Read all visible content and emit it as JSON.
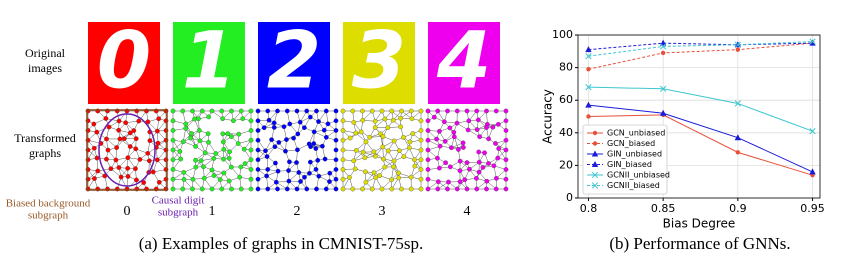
{
  "figure_a": {
    "row_labels": [
      [
        "Original",
        "images"
      ],
      [
        "Transformed",
        "graphs"
      ]
    ],
    "digits": [
      "0",
      "1",
      "2",
      "3",
      "4"
    ],
    "colors": [
      "#ff0000",
      "#22ee22",
      "#0000ff",
      "#dddd00",
      "#ee00ee"
    ],
    "annotations": [
      [
        "Biased background",
        "subgraph"
      ],
      [
        "Causal digit",
        "subgraph"
      ]
    ],
    "caption": "(a) Examples of graphs in CMNIST-75sp."
  },
  "chart_data": {
    "type": "line",
    "caption": "(b) Performance of GNNs.",
    "xlabel": "Bias Degree",
    "ylabel": "Accuracy",
    "x": [
      0.8,
      0.85,
      0.9,
      0.95
    ],
    "xlim": [
      0.793,
      0.955
    ],
    "xticks": [
      0.8,
      0.85,
      0.9,
      0.95
    ],
    "ylim": [
      0,
      100
    ],
    "yticks": [
      0,
      20,
      40,
      60,
      80,
      100
    ],
    "grid": true,
    "legend": "lower left",
    "series": [
      {
        "name": "GCN_unbiased",
        "color": "#e8503a",
        "linestyle": "solid",
        "marker": "circle",
        "values": [
          50,
          51,
          28,
          14
        ]
      },
      {
        "name": "GCN_biased",
        "color": "#e8503a",
        "linestyle": "dashed",
        "marker": "circle",
        "values": [
          79,
          89,
          91,
          95
        ]
      },
      {
        "name": "GIN_unbiased",
        "color": "#1c1cd6",
        "linestyle": "solid",
        "marker": "triangle",
        "values": [
          57,
          52,
          37,
          16
        ]
      },
      {
        "name": "GIN_biased",
        "color": "#1c1cd6",
        "linestyle": "dashed",
        "marker": "triangle",
        "values": [
          91,
          95,
          94,
          95
        ]
      },
      {
        "name": "GCNII_unbiased",
        "color": "#3cc6d2",
        "linestyle": "solid",
        "marker": "x",
        "values": [
          68,
          67,
          58,
          41
        ]
      },
      {
        "name": "GCNII_biased",
        "color": "#3cc6d2",
        "linestyle": "dashed",
        "marker": "x",
        "values": [
          87,
          93,
          94,
          96
        ]
      }
    ]
  }
}
